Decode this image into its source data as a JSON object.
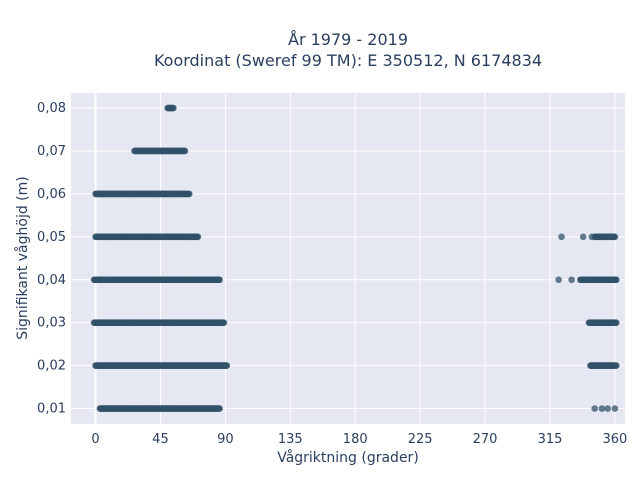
{
  "chart_data": {
    "type": "scatter",
    "title_line1": "År 1979 - 2019",
    "title_line2": "Koordinat (Sweref 99 TM): E 350512, N 6174834",
    "xlabel": "Vågriktning (grader)",
    "ylabel": "Signifikant våghöjd (m)",
    "xlim": [
      -17,
      367
    ],
    "ylim": [
      0.0064,
      0.0835
    ],
    "x_ticks": [
      0,
      45,
      90,
      135,
      180,
      225,
      270,
      315,
      360
    ],
    "y_ticks": [
      0.01,
      0.02,
      0.03,
      0.04,
      0.05,
      0.06,
      0.07,
      0.08
    ],
    "y_tick_labels": [
      "0,01",
      "0,02",
      "0,03",
      "0,04",
      "0,05",
      "0,06",
      "0,07",
      "0,08"
    ],
    "grid": true,
    "legend": "none",
    "colors": {
      "marker": "#31526a",
      "plot_bg": "#e5e8f2",
      "grid": "#ffffff",
      "text": "#2a3f5f"
    },
    "series": [
      {
        "bands": [
          {
            "y": 0.01,
            "x_start": 3,
            "x_end": 86,
            "isolated_x": [
              346,
              351,
              355,
              360
            ]
          },
          {
            "y": 0.02,
            "x_start": 0,
            "x_end": 91,
            "isolated_x": [],
            "extra_range": [
              343,
              361
            ]
          },
          {
            "y": 0.03,
            "x_start": -1,
            "x_end": 89,
            "isolated_x": [],
            "extra_range": [
              342,
              361
            ]
          },
          {
            "y": 0.04,
            "x_start": -1,
            "x_end": 86,
            "isolated_x": [
              321,
              330
            ],
            "extra_range": [
              336,
              361
            ]
          },
          {
            "y": 0.05,
            "x_start": 0,
            "x_end": 71,
            "isolated_x": [
              323,
              338,
              344
            ],
            "extra_range": [
              346,
              360
            ]
          },
          {
            "y": 0.06,
            "x_start": 0,
            "x_end": 65,
            "isolated_x": [
              5
            ],
            "extra_range": null
          },
          {
            "y": 0.07,
            "x_start": 27,
            "x_end": 62,
            "isolated_x": [],
            "extra_range": null
          },
          {
            "y": 0.08,
            "x_start": 50,
            "x_end": 54,
            "isolated_x": [],
            "extra_range": null
          }
        ]
      }
    ]
  }
}
